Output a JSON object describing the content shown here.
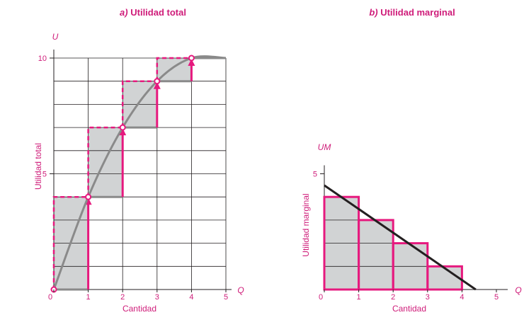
{
  "chart_data": [
    {
      "id": "a",
      "type": "step",
      "title_prefix": "a)",
      "title": "Utilidad total",
      "ylabel": "Utilidad total",
      "y_letter": "U",
      "xlabel": "Cantidad",
      "x_letter": "Q",
      "xlim": [
        0,
        5
      ],
      "ylim": [
        0,
        10
      ],
      "xticks": [
        "0",
        "1",
        "2",
        "3",
        "4",
        "5"
      ],
      "yticks": [
        {
          "value": 5,
          "label": "5"
        },
        {
          "value": 10,
          "label": "10"
        }
      ],
      "grid": true,
      "steps": [
        {
          "x0": 0,
          "x1": 1,
          "from": 0,
          "to": 4
        },
        {
          "x0": 1,
          "x1": 2,
          "from": 4,
          "to": 7
        },
        {
          "x0": 2,
          "x1": 3,
          "from": 7,
          "to": 9
        },
        {
          "x0": 3,
          "x1": 4,
          "from": 9,
          "to": 10
        },
        {
          "x0": 4,
          "x1": 5,
          "from": 10,
          "to": 10
        }
      ],
      "curve_points": [
        [
          0,
          0
        ],
        [
          1,
          4
        ],
        [
          2,
          7
        ],
        [
          3,
          9
        ],
        [
          4,
          10
        ],
        [
          5,
          10
        ]
      ],
      "colors": {
        "accent": "#e6197e",
        "fill": "#d1d3d4",
        "curve": "#8a8a8a",
        "grid": "#231f20"
      }
    },
    {
      "id": "b",
      "type": "bar",
      "title_prefix": "b)",
      "title": "Utilidad marginal",
      "ylabel": "Utilidad marginal",
      "y_letter": "UM",
      "xlabel": "Cantidad",
      "x_letter": "Q",
      "xlim": [
        0,
        5
      ],
      "ylim": [
        0,
        5
      ],
      "xticks": [
        "0",
        "1",
        "2",
        "3",
        "4",
        "5"
      ],
      "yticks": [
        {
          "value": 5,
          "label": "5"
        }
      ],
      "grid": true,
      "bars": [
        {
          "x0": 0,
          "x1": 1,
          "value": 4
        },
        {
          "x0": 1,
          "x1": 2,
          "value": 3
        },
        {
          "x0": 2,
          "x1": 3,
          "value": 2
        },
        {
          "x0": 3,
          "x1": 4,
          "value": 1
        }
      ],
      "line": [
        [
          0,
          4.5
        ],
        [
          4.4,
          0
        ]
      ],
      "colors": {
        "accent": "#e6197e",
        "fill": "#d1d3d4",
        "line": "#231f20",
        "grid": "#231f20"
      }
    }
  ]
}
